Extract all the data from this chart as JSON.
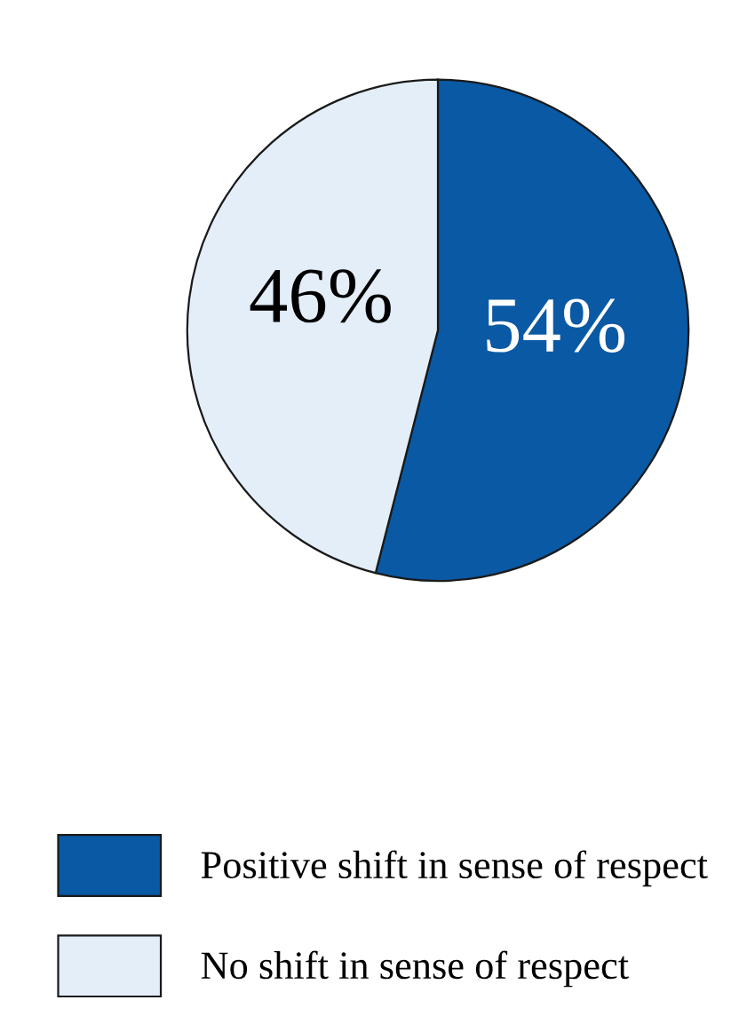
{
  "chart_data": {
    "type": "pie",
    "categories": [
      "Positive shift in sense of respect",
      "No shift in sense of respect"
    ],
    "values": [
      54,
      46
    ],
    "colors": [
      "#0a59a4",
      "#e3eef9"
    ],
    "value_labels": [
      "54%",
      "46%"
    ],
    "legend": "bottom"
  }
}
